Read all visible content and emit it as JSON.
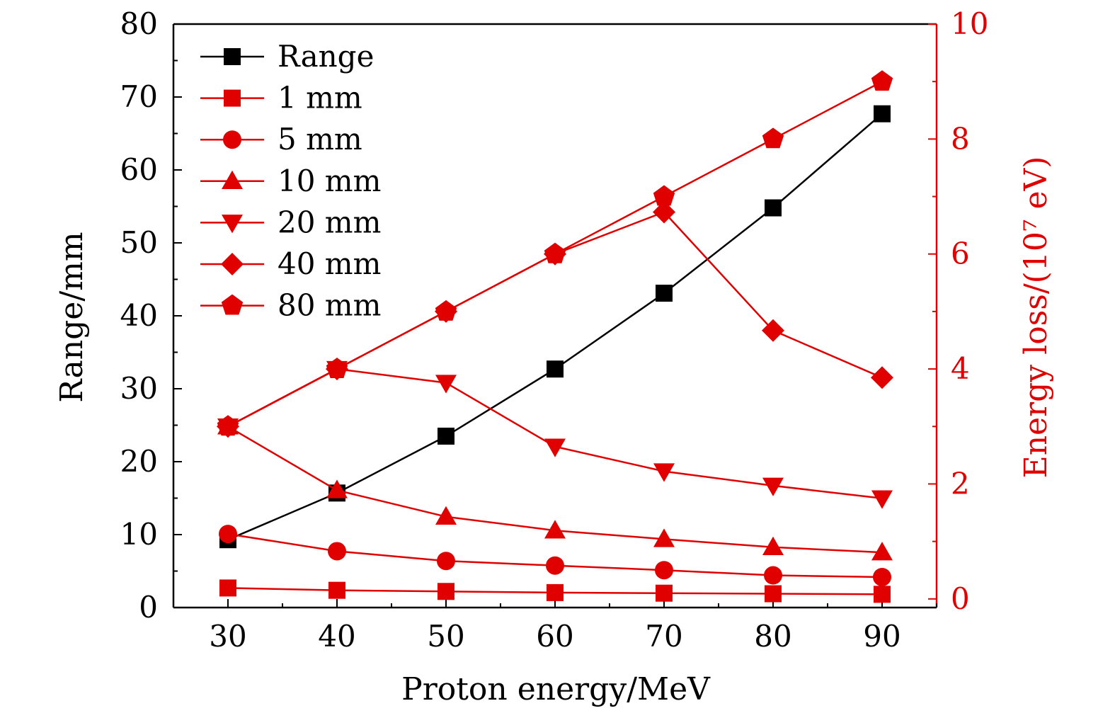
{
  "chart_data": {
    "type": "line",
    "xlabel": "Proton energy/MeV",
    "ylabel_left": "Range/mm",
    "ylabel_right": "Energy loss/(10⁷ eV)",
    "xlim": [
      25,
      95
    ],
    "ylim_left": [
      0,
      80
    ],
    "ylim_right": [
      -0.15,
      10
    ],
    "x_ticks": [
      "30",
      "40",
      "50",
      "60",
      "70",
      "80",
      "90"
    ],
    "y_left_ticks": [
      "0",
      "10",
      "20",
      "30",
      "40",
      "50",
      "60",
      "70",
      "80"
    ],
    "y_right_ticks": [
      "0",
      "2",
      "4",
      "6",
      "8",
      "10"
    ],
    "x": [
      30,
      40,
      50,
      60,
      70,
      80,
      90
    ],
    "legend_position": "top-left",
    "colors": {
      "left_axis": "#000000",
      "right_axis": "#e00000"
    },
    "series": [
      {
        "name": "Range",
        "axis": "left",
        "marker": "square",
        "color": "#000000",
        "values": [
          9.3,
          15.7,
          23.5,
          32.7,
          43.1,
          54.8,
          67.7
        ]
      },
      {
        "name": "1 mm",
        "axis": "right",
        "marker": "square",
        "color": "#e00000",
        "values": [
          0.19,
          0.15,
          0.13,
          0.11,
          0.1,
          0.09,
          0.08
        ]
      },
      {
        "name": "5 mm",
        "axis": "right",
        "marker": "circle",
        "color": "#e00000",
        "values": [
          1.13,
          0.83,
          0.66,
          0.58,
          0.5,
          0.41,
          0.38
        ]
      },
      {
        "name": "10 mm",
        "axis": "right",
        "marker": "triangle-up",
        "color": "#e00000",
        "values": [
          3.0,
          1.89,
          1.43,
          1.19,
          1.04,
          0.9,
          0.81
        ]
      },
      {
        "name": "20 mm",
        "axis": "right",
        "marker": "triangle-down",
        "color": "#e00000",
        "values": [
          3.0,
          4.0,
          3.76,
          2.65,
          2.22,
          1.97,
          1.75
        ]
      },
      {
        "name": "40 mm",
        "axis": "right",
        "marker": "diamond",
        "color": "#e00000",
        "values": [
          3.0,
          4.0,
          5.0,
          6.0,
          6.73,
          4.67,
          3.85
        ]
      },
      {
        "name": "80 mm",
        "axis": "right",
        "marker": "pentagon",
        "color": "#e00000",
        "values": [
          3.0,
          4.0,
          5.0,
          6.0,
          7.0,
          8.0,
          9.0
        ]
      }
    ]
  }
}
